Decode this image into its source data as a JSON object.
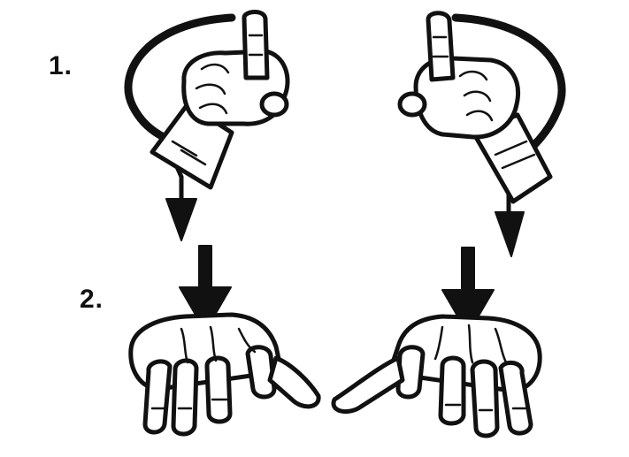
{
  "steps": {
    "step1_label": "1.",
    "step2_label": "2."
  },
  "colors": {
    "ink": "#111111",
    "background": "#ffffff"
  },
  "icons": [
    "left-index-hand-icon",
    "right-index-hand-icon",
    "circular-motion-arrow-icon",
    "down-arrow-icon",
    "flat-hand-icon"
  ]
}
